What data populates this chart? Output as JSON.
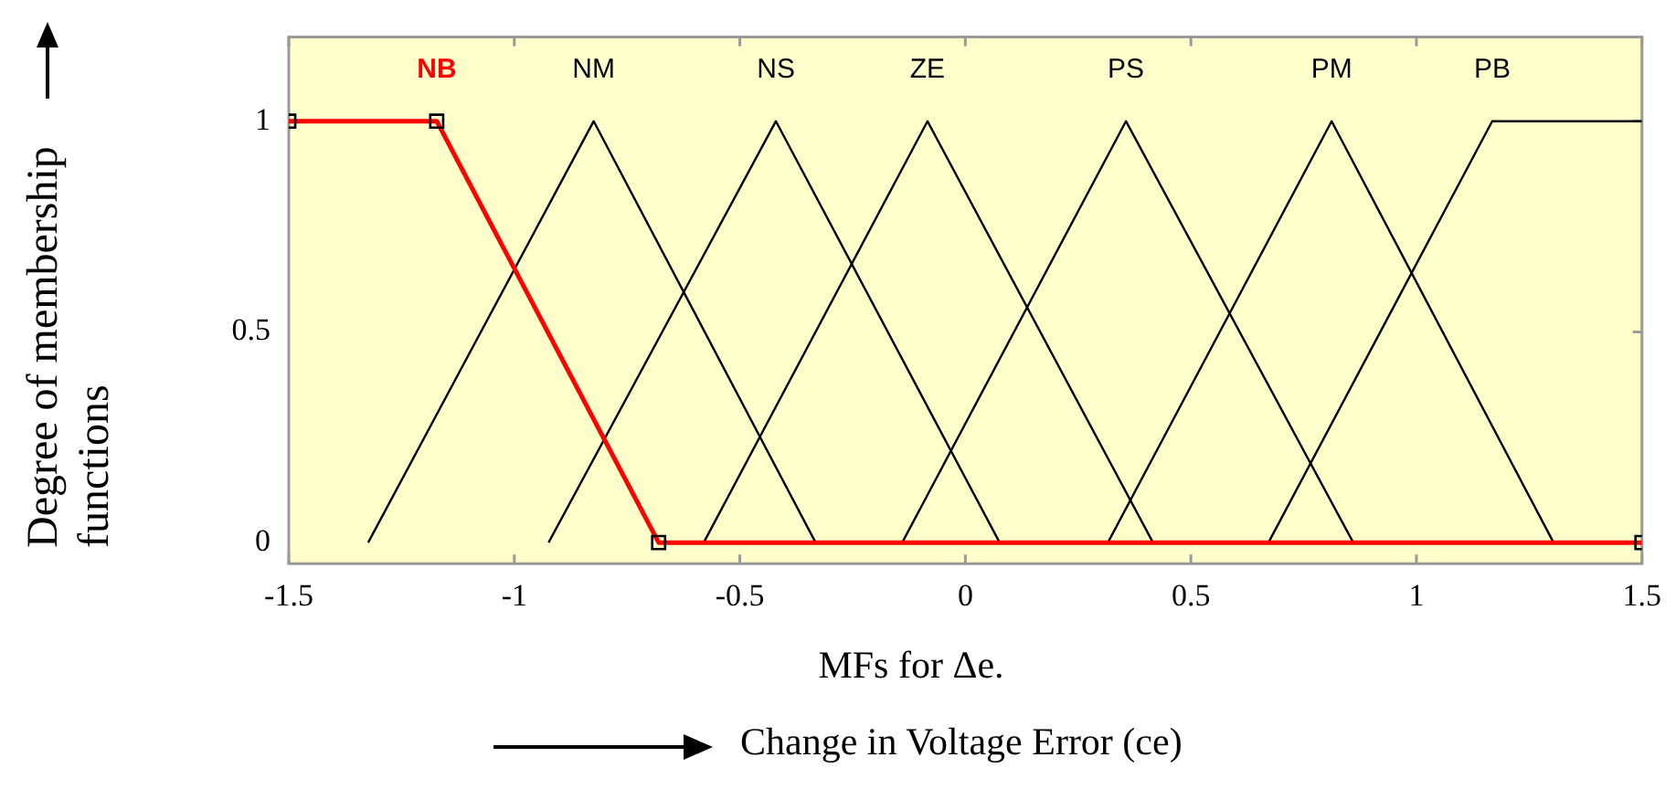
{
  "chart_data": {
    "type": "line",
    "xlabel": "MFs for Δe.",
    "ylabel": "Degree of membership functions",
    "annotations": [
      "Change in Voltage Error (ce)"
    ],
    "xlim": [
      -1.5,
      1.5
    ],
    "xticks": [
      -1.5,
      -1,
      -0.5,
      0,
      0.5,
      1,
      1.5
    ],
    "ylim": [
      -0.05,
      1.2
    ],
    "yticks": [
      0,
      0.5,
      1
    ],
    "line_style": "solid",
    "series": [
      {
        "name": "NB",
        "color": "#ff0000",
        "marker": "square",
        "x": [
          -1.5,
          -1.172,
          -0.68,
          1.5
        ],
        "values": [
          1,
          1,
          0,
          0
        ]
      },
      {
        "name": "NM",
        "color": "#000000",
        "x": [
          -1.324,
          -0.824,
          -0.332
        ],
        "values": [
          0,
          1,
          0
        ]
      },
      {
        "name": "NS",
        "color": "#000000",
        "x": [
          -0.924,
          -0.42,
          0.076
        ],
        "values": [
          0,
          1,
          0
        ]
      },
      {
        "name": "ZE",
        "color": "#000000",
        "x": [
          -0.58,
          -0.084,
          0.416
        ],
        "values": [
          0,
          1,
          0
        ]
      },
      {
        "name": "PS",
        "color": "#000000",
        "x": [
          -0.14,
          0.356,
          0.86
        ],
        "values": [
          0,
          1,
          0
        ]
      },
      {
        "name": "PM",
        "color": "#000000",
        "x": [
          0.316,
          0.812,
          1.304
        ],
        "values": [
          0,
          1,
          0
        ]
      },
      {
        "name": "PB",
        "color": "#000000",
        "x": [
          0.672,
          1.168,
          1.5
        ],
        "values": [
          0,
          1,
          1
        ]
      }
    ]
  }
}
